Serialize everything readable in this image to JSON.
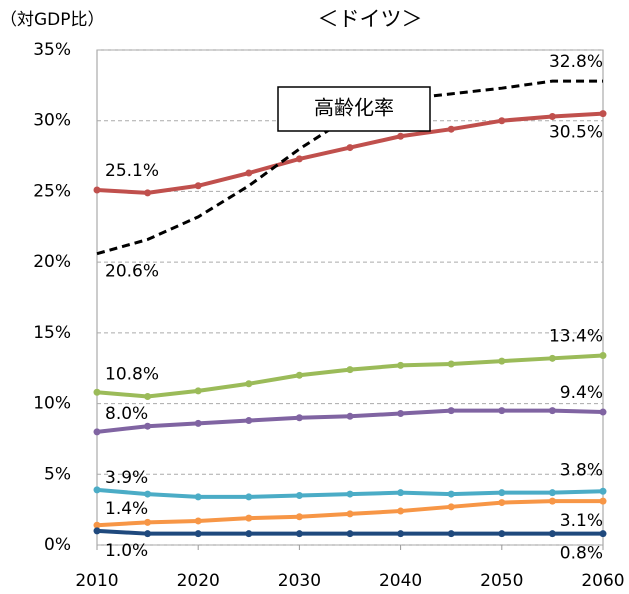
{
  "chart_data": {
    "type": "line",
    "title": "＜ドイツ＞",
    "y_label": "（対GDP比）",
    "x": [
      2010,
      2015,
      2020,
      2025,
      2030,
      2035,
      2040,
      2045,
      2050,
      2055,
      2060
    ],
    "xlim": [
      2010,
      2060
    ],
    "xticks": [
      2010,
      2020,
      2030,
      2040,
      2050,
      2060
    ],
    "ylim": [
      0,
      35
    ],
    "yticks": [
      {
        "value": 0,
        "label": "0%"
      },
      {
        "value": 5,
        "label": "5%"
      },
      {
        "value": 10,
        "label": "10%"
      },
      {
        "value": 15,
        "label": "15%"
      },
      {
        "value": 20,
        "label": "20%"
      },
      {
        "value": 25,
        "label": "25%"
      },
      {
        "value": 30,
        "label": "30%"
      },
      {
        "value": 35,
        "label": "35%"
      }
    ],
    "grid": true,
    "series": [
      {
        "color": "#c0504d",
        "markers": true,
        "values": [
          25.1,
          24.9,
          25.4,
          26.3,
          27.3,
          28.1,
          28.9,
          29.4,
          30.0,
          30.3,
          30.5
        ],
        "value_labels": [
          "25.1%",
          null,
          null,
          null,
          null,
          null,
          null,
          null,
          null,
          null,
          "30.5%"
        ]
      },
      {
        "name": "高齢化率",
        "color": "#000000",
        "dashed": true,
        "markers": false,
        "values": [
          20.6,
          21.6,
          23.2,
          25.4,
          28.0,
          30.3,
          31.5,
          31.9,
          32.3,
          32.8,
          32.8
        ],
        "value_labels": [
          "20.6%",
          null,
          null,
          null,
          null,
          null,
          null,
          null,
          null,
          null,
          "32.8%"
        ]
      },
      {
        "color": "#9bbb59",
        "markers": true,
        "values": [
          10.8,
          10.5,
          10.9,
          11.4,
          12.0,
          12.4,
          12.7,
          12.8,
          13.0,
          13.2,
          13.4
        ],
        "value_labels": [
          "10.8%",
          null,
          null,
          null,
          null,
          null,
          null,
          null,
          null,
          null,
          "13.4%"
        ]
      },
      {
        "color": "#8064a2",
        "markers": true,
        "values": [
          8.0,
          8.4,
          8.6,
          8.8,
          9.0,
          9.1,
          9.3,
          9.5,
          9.5,
          9.5,
          9.4
        ],
        "value_labels": [
          "8.0%",
          null,
          null,
          null,
          null,
          null,
          null,
          null,
          null,
          null,
          "9.4%"
        ]
      },
      {
        "color": "#4bacc6",
        "markers": true,
        "values": [
          3.9,
          3.6,
          3.4,
          3.4,
          3.5,
          3.6,
          3.7,
          3.6,
          3.7,
          3.7,
          3.8
        ],
        "value_labels": [
          "3.9%",
          null,
          null,
          null,
          null,
          null,
          null,
          null,
          null,
          null,
          "3.8%"
        ]
      },
      {
        "color": "#f79646",
        "markers": true,
        "values": [
          1.4,
          1.6,
          1.7,
          1.9,
          2.0,
          2.2,
          2.4,
          2.7,
          3.0,
          3.1,
          3.1
        ],
        "value_labels": [
          "1.4%",
          null,
          null,
          null,
          null,
          null,
          null,
          null,
          null,
          null,
          "3.1%"
        ]
      },
      {
        "color": "#1f497d",
        "markers": true,
        "values": [
          1.0,
          0.8,
          0.8,
          0.8,
          0.8,
          0.8,
          0.8,
          0.8,
          0.8,
          0.8,
          0.8
        ],
        "value_labels": [
          "1.0%",
          null,
          null,
          null,
          null,
          null,
          null,
          null,
          null,
          null,
          "0.8%"
        ]
      }
    ]
  }
}
